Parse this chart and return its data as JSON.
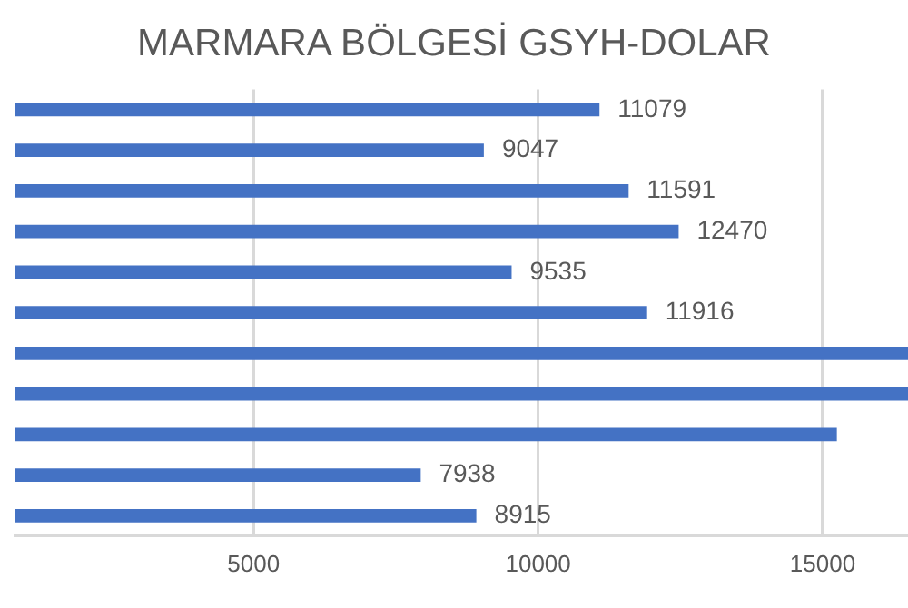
{
  "chart_data": {
    "type": "bar",
    "orientation": "horizontal",
    "title": "MARMARA BÖLGESİ GSYH-DOLAR",
    "categories": [
      null,
      null,
      null,
      null,
      null,
      null,
      null,
      null,
      null,
      null,
      null
    ],
    "values": [
      11079,
      9047,
      11591,
      12470,
      9535,
      11916,
      16500,
      16500,
      15250,
      7938,
      8915
    ],
    "value_labels": [
      "11079",
      "9047",
      "11591",
      "12470",
      "9535",
      "11916",
      null,
      null,
      null,
      "7938",
      "8915"
    ],
    "color": "#4472c4",
    "xlim": [
      800,
      16500
    ],
    "xticks": [
      5000,
      10000,
      15000
    ],
    "grid": "x",
    "tick_labels": "x"
  }
}
